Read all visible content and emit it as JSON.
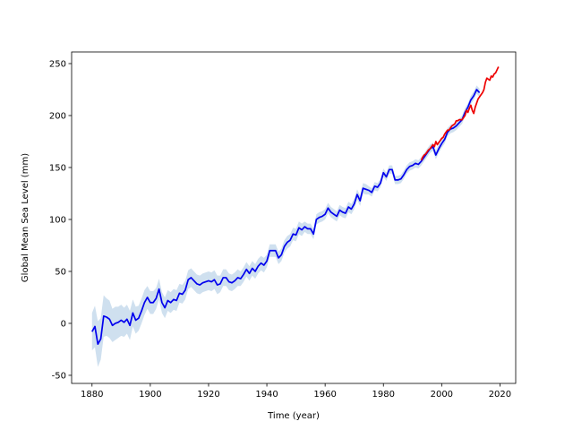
{
  "chart_data": {
    "type": "line",
    "xlabel": "Time (year)",
    "ylabel": "Global Mean Sea Level (mm)",
    "xlim": [
      1873,
      2025.4
    ],
    "ylim": [
      -57.8,
      261.2
    ],
    "xticks": [
      1880,
      1900,
      1920,
      1940,
      1960,
      1980,
      2000,
      2020
    ],
    "yticks": [
      -50,
      0,
      50,
      100,
      150,
      200,
      250
    ],
    "band_color": "#cfe0ef",
    "series": [
      {
        "color": "#0000ee",
        "x": [
          1880,
          1881,
          1882,
          1883,
          1884,
          1885,
          1886,
          1887,
          1888,
          1889,
          1890,
          1891,
          1892,
          1893,
          1894,
          1895,
          1896,
          1897,
          1898,
          1899,
          1900,
          1901,
          1902,
          1903,
          1904,
          1905,
          1906,
          1907,
          1908,
          1909,
          1910,
          1911,
          1912,
          1913,
          1914,
          1915,
          1916,
          1917,
          1918,
          1919,
          1920,
          1921,
          1922,
          1923,
          1924,
          1925,
          1926,
          1927,
          1928,
          1929,
          1930,
          1931,
          1932,
          1933,
          1934,
          1935,
          1936,
          1937,
          1938,
          1939,
          1940,
          1941,
          1942,
          1943,
          1944,
          1945,
          1946,
          1947,
          1948,
          1949,
          1950,
          1951,
          1952,
          1953,
          1954,
          1955,
          1956,
          1957,
          1958,
          1959,
          1960,
          1961,
          1962,
          1963,
          1964,
          1965,
          1966,
          1967,
          1968,
          1969,
          1970,
          1971,
          1972,
          1973,
          1974,
          1975,
          1976,
          1977,
          1978,
          1979,
          1980,
          1981,
          1982,
          1983,
          1984,
          1985,
          1986,
          1987,
          1988,
          1989,
          1990,
          1991,
          1992,
          1993,
          1994,
          1995,
          1996,
          1997,
          1998,
          1999,
          2000,
          2001,
          2002,
          2003,
          2004,
          2005,
          2006,
          2007,
          2008,
          2009,
          2010,
          2011,
          2012,
          2013
        ],
        "values": [
          -8,
          -3,
          -20,
          -15,
          7,
          6,
          4,
          -2,
          0,
          1,
          3,
          1,
          4,
          -2,
          10,
          3,
          5,
          12,
          20,
          25,
          20,
          20,
          24,
          33,
          20,
          15,
          22,
          20,
          23,
          22,
          29,
          28,
          32,
          42,
          44,
          41,
          38,
          37,
          39,
          40,
          41,
          40,
          42,
          37,
          38,
          44,
          44,
          40,
          39,
          41,
          44,
          43,
          47,
          52,
          48,
          53,
          50,
          55,
          58,
          56,
          60,
          70,
          70,
          70,
          63,
          66,
          74,
          78,
          80,
          86,
          85,
          92,
          90,
          93,
          91,
          91,
          86,
          100,
          102,
          103,
          105,
          111,
          107,
          105,
          103,
          109,
          107,
          106,
          112,
          110,
          115,
          124,
          118,
          130,
          129,
          128,
          126,
          132,
          131,
          135,
          145,
          141,
          148,
          148,
          138,
          138,
          139,
          143,
          148,
          151,
          152,
          154,
          153,
          156,
          160,
          164,
          168,
          170,
          162,
          168,
          173,
          177,
          184,
          187,
          188,
          190,
          193,
          196,
          203,
          208,
          215,
          219,
          225,
          222
        ],
        "errors": [
          18,
          20,
          22,
          20,
          20,
          18,
          18,
          16,
          16,
          15,
          15,
          14,
          14,
          14,
          13,
          13,
          12,
          12,
          12,
          11,
          11,
          11,
          10,
          10,
          10,
          10,
          10,
          10,
          10,
          10,
          9,
          9,
          9,
          9,
          9,
          9,
          9,
          9,
          9,
          9,
          9,
          9,
          9,
          9,
          8,
          8,
          8,
          8,
          8,
          8,
          8,
          7,
          7,
          7,
          7,
          7,
          7,
          7,
          7,
          7,
          6,
          6,
          6,
          6,
          6,
          6,
          6,
          6,
          6,
          6,
          6,
          6,
          6,
          5,
          5,
          5,
          5,
          5,
          5,
          5,
          5,
          5,
          5,
          5,
          5,
          5,
          5,
          5,
          5,
          5,
          5,
          5,
          5,
          5,
          5,
          4,
          4,
          4,
          4,
          4,
          4,
          4,
          4,
          4,
          4,
          4,
          4,
          4,
          4,
          4,
          4,
          4,
          4,
          4,
          4,
          4,
          4,
          4,
          4,
          4,
          4,
          4,
          4,
          4,
          4,
          4,
          4,
          4,
          4,
          4,
          4,
          4,
          4,
          4
        ]
      },
      {
        "color": "#ee0000",
        "x": [
          1993,
          1993.5,
          1994,
          1994.5,
          1995,
          1995.5,
          1996,
          1996.5,
          1997,
          1997.5,
          1998,
          1998.5,
          1999,
          1999.5,
          2000,
          2000.5,
          2001,
          2001.5,
          2002,
          2002.5,
          2003,
          2003.5,
          2004,
          2004.5,
          2005,
          2005.5,
          2006,
          2006.5,
          2007,
          2007.5,
          2008,
          2008.5,
          2009,
          2009.5,
          2010,
          2010.5,
          2011,
          2011.5,
          2012,
          2012.5,
          2013,
          2013.5,
          2014,
          2014.5,
          2015,
          2015.5,
          2016,
          2016.5,
          2017,
          2017.5,
          2018,
          2018.5,
          2019,
          2019.5
        ],
        "values": [
          157,
          160,
          162,
          163,
          165,
          167,
          168,
          170,
          172,
          170,
          175,
          172,
          174,
          176,
          178,
          179,
          182,
          184,
          186,
          186,
          188,
          190,
          191,
          192,
          195,
          195,
          196,
          196,
          196,
          198,
          200,
          205,
          203,
          207,
          210,
          205,
          202,
          208,
          212,
          216,
          218,
          220,
          222,
          225,
          232,
          236,
          235,
          234,
          238,
          237,
          240,
          241,
          244,
          247
        ]
      }
    ]
  }
}
